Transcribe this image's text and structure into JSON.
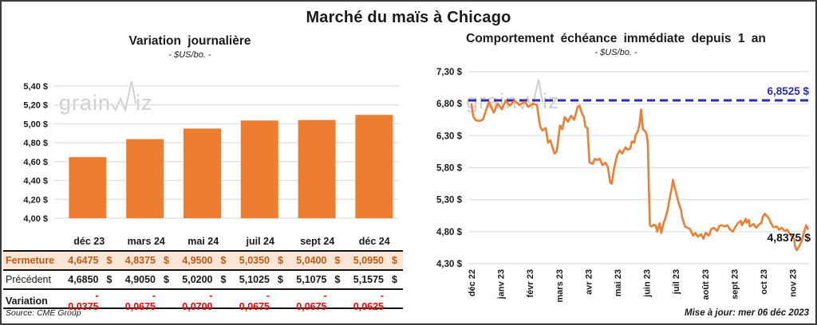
{
  "page": {
    "title": "Marché du maïs à Chicago",
    "source": "Source: CME Group",
    "updated": "Mise à jour: mer 06 déc 2023",
    "watermark": {
      "pre": "grain",
      "post": "iz"
    }
  },
  "colors": {
    "orange": "#ED7D31",
    "blue": "#2B2BBD",
    "red": "#FF0000",
    "peach": "#FBE5D6",
    "brown": "#BE5A12",
    "grid": "#DEDEDE",
    "ink": "#1A1A1A",
    "wm": "#C7C7C7"
  },
  "chart_data": [
    {
      "type": "bar",
      "title": "Variation journalière",
      "subtitle": "- $US/bo. -",
      "categories": [
        "déc 23",
        "mars 24",
        "mai 24",
        "juil 24",
        "sept 24",
        "déc 24"
      ],
      "values": [
        4.6475,
        4.8375,
        4.95,
        5.035,
        5.04,
        5.095
      ],
      "ylim": [
        4.0,
        5.4
      ],
      "ytick_step": 0.2,
      "ytick_labels": [
        "5,40 $",
        "5,20 $",
        "5,00 $",
        "4,80 $",
        "4,60 $",
        "4,40 $",
        "4,20 $",
        "4,00 $"
      ],
      "grid": true,
      "legend": false
    },
    {
      "type": "line",
      "title": "Comportement échéance immédiate depuis 1 an",
      "subtitle": "- $US/bo. -",
      "x_labels": [
        "déc 22",
        "janv 23",
        "févr 23",
        "mars 23",
        "avr 23",
        "mai 23",
        "juin 23",
        "juil 23",
        "août 23",
        "sept 23",
        "oct 23",
        "nov 23"
      ],
      "ylim": [
        4.3,
        7.3
      ],
      "ytick_step": 0.5,
      "ytick_labels": [
        "7,30 $",
        "6,80 $",
        "6,30 $",
        "5,80 $",
        "5,30 $",
        "4,80 $",
        "4,30 $"
      ],
      "grid": true,
      "legend": false,
      "reference_line": {
        "value": 6.8525,
        "label": "6,8525 $"
      },
      "end_label": {
        "value": 4.8375,
        "label": "4,8375 $"
      },
      "series": [
        {
          "name": "échéance immédiate",
          "points": [
            [
              0.0,
              6.79
            ],
            [
              0.06,
              6.6
            ],
            [
              0.15,
              6.54
            ],
            [
              0.3,
              6.53
            ],
            [
              0.4,
              6.56
            ],
            [
              0.5,
              6.7
            ],
            [
              0.6,
              6.83
            ],
            [
              0.68,
              6.74
            ],
            [
              0.76,
              6.66
            ],
            [
              0.9,
              6.8
            ],
            [
              1.04,
              6.71
            ],
            [
              1.17,
              6.85
            ],
            [
              1.31,
              6.77
            ],
            [
              1.47,
              6.85
            ],
            [
              1.64,
              6.78
            ],
            [
              1.83,
              6.83
            ],
            [
              1.94,
              6.75
            ],
            [
              2.1,
              6.8
            ],
            [
              2.24,
              6.78
            ],
            [
              2.35,
              6.44
            ],
            [
              2.43,
              6.38
            ],
            [
              2.54,
              6.42
            ],
            [
              2.62,
              6.19
            ],
            [
              2.7,
              6.23
            ],
            [
              2.78,
              6.11
            ],
            [
              2.84,
              6.02
            ],
            [
              2.92,
              6.06
            ],
            [
              3.03,
              6.46
            ],
            [
              3.11,
              6.4
            ],
            [
              3.19,
              6.59
            ],
            [
              3.3,
              6.52
            ],
            [
              3.41,
              6.61
            ],
            [
              3.52,
              6.55
            ],
            [
              3.63,
              6.75
            ],
            [
              3.7,
              6.77
            ],
            [
              3.78,
              6.65
            ],
            [
              3.85,
              6.59
            ],
            [
              3.9,
              6.44
            ],
            [
              3.97,
              6.42
            ],
            [
              4.04,
              5.88
            ],
            [
              4.15,
              5.86
            ],
            [
              4.22,
              5.94
            ],
            [
              4.31,
              5.92
            ],
            [
              4.39,
              5.94
            ],
            [
              4.48,
              5.84
            ],
            [
              4.59,
              5.88
            ],
            [
              4.67,
              5.81
            ],
            [
              4.75,
              5.57
            ],
            [
              4.8,
              5.55
            ],
            [
              4.89,
              5.81
            ],
            [
              4.99,
              6.0
            ],
            [
              5.08,
              6.07
            ],
            [
              5.16,
              6.02
            ],
            [
              5.27,
              6.12
            ],
            [
              5.35,
              6.08
            ],
            [
              5.44,
              6.1
            ],
            [
              5.49,
              6.21
            ],
            [
              5.57,
              6.19
            ],
            [
              5.62,
              6.31
            ],
            [
              5.7,
              6.37
            ],
            [
              5.76,
              6.5
            ],
            [
              5.81,
              6.71
            ],
            [
              5.87,
              6.4
            ],
            [
              5.95,
              6.37
            ],
            [
              6.0,
              6.31
            ],
            [
              6.04,
              6.16
            ],
            [
              6.07,
              5.49
            ],
            [
              6.11,
              4.9
            ],
            [
              6.17,
              4.88
            ],
            [
              6.24,
              4.91
            ],
            [
              6.3,
              4.9
            ],
            [
              6.36,
              4.8
            ],
            [
              6.44,
              4.93
            ],
            [
              6.5,
              4.78
            ],
            [
              6.58,
              4.94
            ],
            [
              6.63,
              5.0
            ],
            [
              6.71,
              5.13
            ],
            [
              6.77,
              5.28
            ],
            [
              6.82,
              5.4
            ],
            [
              6.85,
              5.46
            ],
            [
              6.9,
              5.61
            ],
            [
              6.94,
              5.52
            ],
            [
              6.99,
              5.44
            ],
            [
              7.07,
              5.28
            ],
            [
              7.18,
              5.13
            ],
            [
              7.21,
              5.03
            ],
            [
              7.31,
              4.88
            ],
            [
              7.4,
              4.86
            ],
            [
              7.48,
              4.84
            ],
            [
              7.59,
              4.74
            ],
            [
              7.67,
              4.78
            ],
            [
              7.75,
              4.72
            ],
            [
              7.86,
              4.76
            ],
            [
              7.94,
              4.69
            ],
            [
              8.02,
              4.78
            ],
            [
              8.13,
              4.74
            ],
            [
              8.21,
              4.84
            ],
            [
              8.3,
              4.86
            ],
            [
              8.41,
              4.81
            ],
            [
              8.49,
              4.89
            ],
            [
              8.57,
              4.9
            ],
            [
              8.68,
              4.88
            ],
            [
              8.76,
              4.9
            ],
            [
              8.84,
              4.84
            ],
            [
              8.95,
              4.8
            ],
            [
              9.03,
              4.87
            ],
            [
              9.12,
              4.93
            ],
            [
              9.22,
              4.97
            ],
            [
              9.26,
              4.9
            ],
            [
              9.39,
              5.0
            ],
            [
              9.42,
              4.94
            ],
            [
              9.5,
              4.98
            ],
            [
              9.53,
              4.88
            ],
            [
              9.66,
              4.92
            ],
            [
              9.74,
              4.86
            ],
            [
              9.82,
              4.9
            ],
            [
              9.93,
              4.94
            ],
            [
              9.96,
              5.01
            ],
            [
              10.04,
              5.08
            ],
            [
              10.18,
              5.01
            ],
            [
              10.26,
              4.93
            ],
            [
              10.34,
              4.87
            ],
            [
              10.45,
              4.88
            ],
            [
              10.53,
              4.83
            ],
            [
              10.62,
              4.86
            ],
            [
              10.73,
              4.81
            ],
            [
              10.81,
              4.83
            ],
            [
              10.89,
              4.77
            ],
            [
              11.0,
              4.71
            ],
            [
              11.05,
              4.69
            ],
            [
              11.08,
              4.57
            ],
            [
              11.14,
              4.51
            ],
            [
              11.22,
              4.57
            ],
            [
              11.3,
              4.65
            ],
            [
              11.35,
              4.73
            ],
            [
              11.41,
              4.83
            ],
            [
              11.46,
              4.9
            ],
            [
              11.52,
              4.84
            ]
          ]
        }
      ]
    }
  ],
  "table": {
    "headers": [
      "",
      "déc 23",
      "mars 24",
      "mai 24",
      "juil 24",
      "sept 24",
      "déc 24"
    ],
    "rows": [
      {
        "label": "Fermeture",
        "style": "fermeture",
        "suffix": "$",
        "values": [
          "4,6475",
          "4,8375",
          "4,9500",
          "5,0350",
          "5,0400",
          "5,0950"
        ]
      },
      {
        "label": "Précédent",
        "style": "precedent",
        "suffix": "$",
        "values": [
          "4,6850",
          "4,9050",
          "5,0200",
          "5,1025",
          "5,1075",
          "5,1575"
        ]
      },
      {
        "label": "Variation",
        "style": "variation",
        "suffix": "",
        "values": [
          "- 0,0375",
          "- 0,0675",
          "- 0,0700",
          "- 0,0675",
          "- 0,0675",
          "- 0,0625"
        ]
      }
    ]
  }
}
